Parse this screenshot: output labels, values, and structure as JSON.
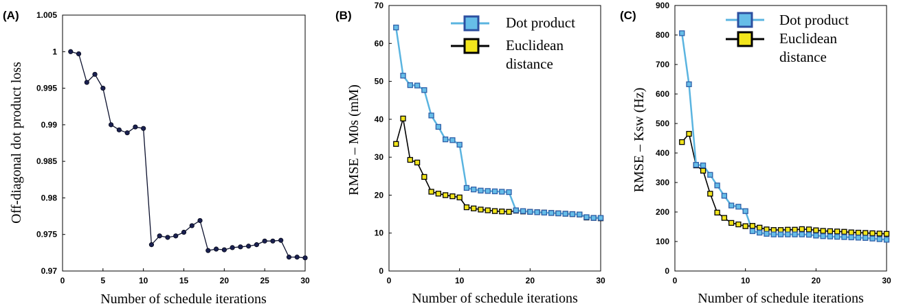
{
  "chart_data": [
    {
      "type": "line",
      "panel_label": "(A)",
      "xlabel": "Number of schedule iterations",
      "ylabel": "Off-diagonal dot product loss",
      "xlim": [
        0,
        30
      ],
      "ylim": [
        0.97,
        1.005
      ],
      "xticks": [
        0,
        5,
        10,
        15,
        20,
        25,
        30
      ],
      "yticks": [
        0.97,
        0.975,
        0.98,
        0.985,
        0.99,
        0.995,
        1,
        1.005
      ],
      "ytick_labels": [
        "0.97",
        "0.975",
        "0.98",
        "0.985",
        "0.99",
        "0.995",
        "1",
        "1.005"
      ],
      "grid": false,
      "x": [
        1,
        2,
        3,
        4,
        5,
        6,
        7,
        8,
        9,
        10,
        11,
        12,
        13,
        14,
        15,
        16,
        17,
        18,
        19,
        20,
        21,
        22,
        23,
        24,
        25,
        26,
        27,
        28,
        29,
        30
      ],
      "series": [
        {
          "values": [
            1.0,
            0.9997,
            0.9958,
            0.9969,
            0.995,
            0.99,
            0.9893,
            0.9889,
            0.9897,
            0.9895,
            0.9736,
            0.9748,
            0.9746,
            0.9748,
            0.9753,
            0.9762,
            0.9769,
            0.9728,
            0.973,
            0.9729,
            0.9732,
            0.9733,
            0.9734,
            0.9736,
            0.9741,
            0.9741,
            0.9742,
            0.9719,
            0.9719,
            0.9718
          ],
          "color": "#0a0f2c"
        }
      ]
    },
    {
      "type": "line",
      "panel_label": "(B)",
      "xlabel": "Number of schedule iterations",
      "ylabel": "RMSE – M0s (mM)",
      "xlim": [
        0,
        30
      ],
      "ylim": [
        0,
        70
      ],
      "xticks": [
        0,
        10,
        20,
        30
      ],
      "yticks": [
        0,
        10,
        20,
        30,
        40,
        50,
        60,
        70
      ],
      "grid": false,
      "legend_position": "top-right",
      "x": [
        1,
        2,
        3,
        4,
        5,
        6,
        7,
        8,
        9,
        10,
        11,
        12,
        13,
        14,
        15,
        16,
        17,
        18,
        19,
        20,
        21,
        22,
        23,
        24,
        25,
        26,
        27,
        28,
        29,
        30
      ],
      "series": [
        {
          "name": "Dot product",
          "color": "#5ab4e0",
          "values": [
            64.2,
            51.5,
            49,
            48.9,
            47.7,
            41,
            38,
            34.7,
            34.5,
            33.3,
            21.9,
            21.5,
            21.2,
            21.1,
            21,
            20.9,
            20.8,
            16,
            15.8,
            15.6,
            15.5,
            15.4,
            15.3,
            15.2,
            15.1,
            15,
            14.9,
            14.2,
            14,
            14
          ]
        },
        {
          "name": "Euclidean distance",
          "color": "#000000",
          "values": [
            33.5,
            40.2,
            29.3,
            28.6,
            24.8,
            20.9,
            20.4,
            20,
            19.7,
            19.4,
            16.8,
            16.5,
            16.2,
            16,
            15.8,
            15.7,
            15.6,
            15.9,
            15.7,
            15.6,
            15.5,
            15.4,
            15.3,
            15.2,
            15.1,
            15,
            14.9,
            14.1,
            14,
            13.9
          ]
        }
      ]
    },
    {
      "type": "line",
      "panel_label": "(C)",
      "xlabel": "Number of schedule iterations",
      "ylabel": "RMSE – Ksw (Hz)",
      "xlim": [
        0,
        30
      ],
      "ylim": [
        0,
        900
      ],
      "xticks": [
        0,
        10,
        20,
        30
      ],
      "yticks": [
        0,
        100,
        200,
        300,
        400,
        500,
        600,
        700,
        800,
        900
      ],
      "grid": false,
      "legend_position": "top-right",
      "x": [
        1,
        2,
        3,
        4,
        5,
        6,
        7,
        8,
        9,
        10,
        11,
        12,
        13,
        14,
        15,
        16,
        17,
        18,
        19,
        20,
        21,
        22,
        23,
        24,
        25,
        26,
        27,
        28,
        29,
        30
      ],
      "series": [
        {
          "name": "Dot product",
          "color": "#5ab4e0",
          "values": [
            806,
            633,
            360,
            358,
            326,
            290,
            255,
            222,
            218,
            203,
            135,
            130,
            126,
            124,
            124,
            124,
            124,
            124,
            123,
            120,
            118,
            117,
            116,
            115,
            114,
            113,
            112,
            110,
            108,
            106
          ]
        },
        {
          "name": "Euclidean distance",
          "color": "#000000",
          "values": [
            437,
            465,
            358,
            340,
            262,
            198,
            180,
            163,
            158,
            152,
            153,
            147,
            141,
            139,
            139,
            140,
            140,
            142,
            141,
            138,
            136,
            135,
            134,
            133,
            131,
            130,
            129,
            128,
            127,
            126
          ]
        }
      ]
    }
  ],
  "legend_labels": {
    "b": {
      "dot": "Dot product",
      "euc_line1": "Euclidean",
      "euc_line2": "distance"
    },
    "c": {
      "dot": "Dot product",
      "euc_line1": "Euclidean",
      "euc_line2": "distance"
    }
  },
  "colors": {
    "dot_line": "#5ab4e0",
    "dot_marker_fill": "#66bde8",
    "dot_marker_edge": "#2f5fa8",
    "dot_legend_edge": "#2c4fa0",
    "euc_line": "#000000",
    "euc_marker_fill": "#f2e51c",
    "euc_marker_edge": "#000000",
    "panel_a_line": "#0a0f2c"
  }
}
